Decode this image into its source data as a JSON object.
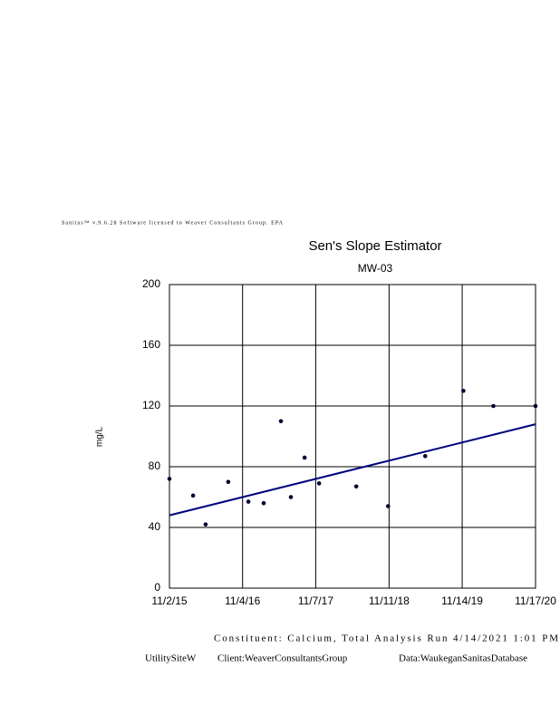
{
  "header": "Sanitas™ v.9.6.28 Software licensed to Weaver Consultants Group. EPA",
  "footer": {
    "line1": "Constituent: Calcium, Total Analysis Run 4/14/2021 1:01 PM",
    "left": "UtilitySiteW",
    "client": "Client:WeaverConsultantsGroup",
    "data": "Data:WaukeganSanitasDatabase"
  },
  "chart_data": {
    "type": "scatter",
    "title": "Sen's Slope Estimator",
    "subtitle": "MW-03",
    "y_label": "mg/L",
    "x": [
      "2015-11-02",
      "2016-02-29",
      "2016-05-02",
      "2016-08-24",
      "2016-12-03",
      "2017-02-18",
      "2017-05-16",
      "2017-07-05",
      "2017-09-12",
      "2017-11-24",
      "2018-05-30",
      "2018-11-06",
      "2019-05-12",
      "2019-11-20",
      "2020-04-19",
      "2020-11-17"
    ],
    "values": [
      72,
      61,
      42,
      70,
      57,
      56,
      110,
      60,
      86,
      69,
      67,
      54,
      87,
      130,
      120,
      120
    ],
    "color": "#000033",
    "trend": {
      "x": [
        "2015-11-02",
        "2020-11-17"
      ],
      "values": [
        48,
        108
      ],
      "color": "#000080"
    },
    "xlim": [
      "2015-11-02",
      "2020-11-17"
    ],
    "xticks": [
      {
        "value": "2015-11-02",
        "label": "11/2/15"
      },
      {
        "value": "2016-11-04",
        "label": "11/4/16"
      },
      {
        "value": "2017-11-07",
        "label": "11/7/17"
      },
      {
        "value": "2018-11-11",
        "label": "11/11/18"
      },
      {
        "value": "2019-11-14",
        "label": "11/14/19"
      },
      {
        "value": "2020-11-17",
        "label": "11/17/20"
      }
    ],
    "ylim": [
      0,
      200
    ],
    "yticks": [
      0,
      40,
      80,
      120,
      160,
      200
    ],
    "grid": true
  }
}
